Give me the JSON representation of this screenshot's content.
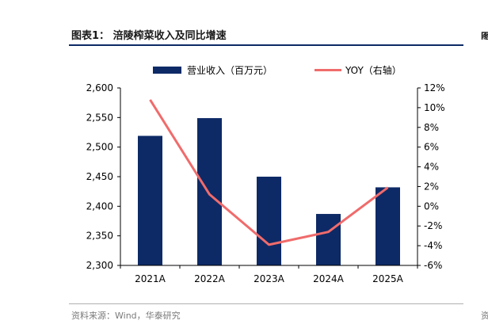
{
  "header": {
    "title": "图表1：  涪陵榨菜收入及同比增速",
    "right_fragment": "图"
  },
  "source": {
    "text": "资料来源：Wind，华泰研究",
    "right_fragment": "资"
  },
  "colors": {
    "bar": "#0d2a66",
    "line": "#f06b6b",
    "axis": "#000000",
    "header_rule": "#0d2a66"
  },
  "chart_data": {
    "type": "bar",
    "categories": [
      "2021A",
      "2022A",
      "2023A",
      "2024A",
      "2025A"
    ],
    "series": [
      {
        "name": "营业收入（百万元）",
        "type": "bar",
        "axis": "left",
        "values": [
          2519,
          2549,
          2450,
          2387,
          2432
        ]
      },
      {
        "name": "YOY（右轴）",
        "type": "line",
        "axis": "right",
        "values": [
          10.8,
          1.2,
          -3.9,
          -2.6,
          1.9
        ]
      }
    ],
    "left_axis": {
      "ylim": [
        2300,
        2600
      ],
      "ticks": [
        "2,300",
        "2,350",
        "2,400",
        "2,450",
        "2,500",
        "2,550",
        "2,600"
      ]
    },
    "right_axis": {
      "ylim": [
        -6,
        12
      ],
      "ticks": [
        "-6%",
        "-4%",
        "-2%",
        "0%",
        "2%",
        "4%",
        "6%",
        "8%",
        "10%",
        "12%"
      ]
    },
    "legend_placement": "top",
    "grid": false
  }
}
